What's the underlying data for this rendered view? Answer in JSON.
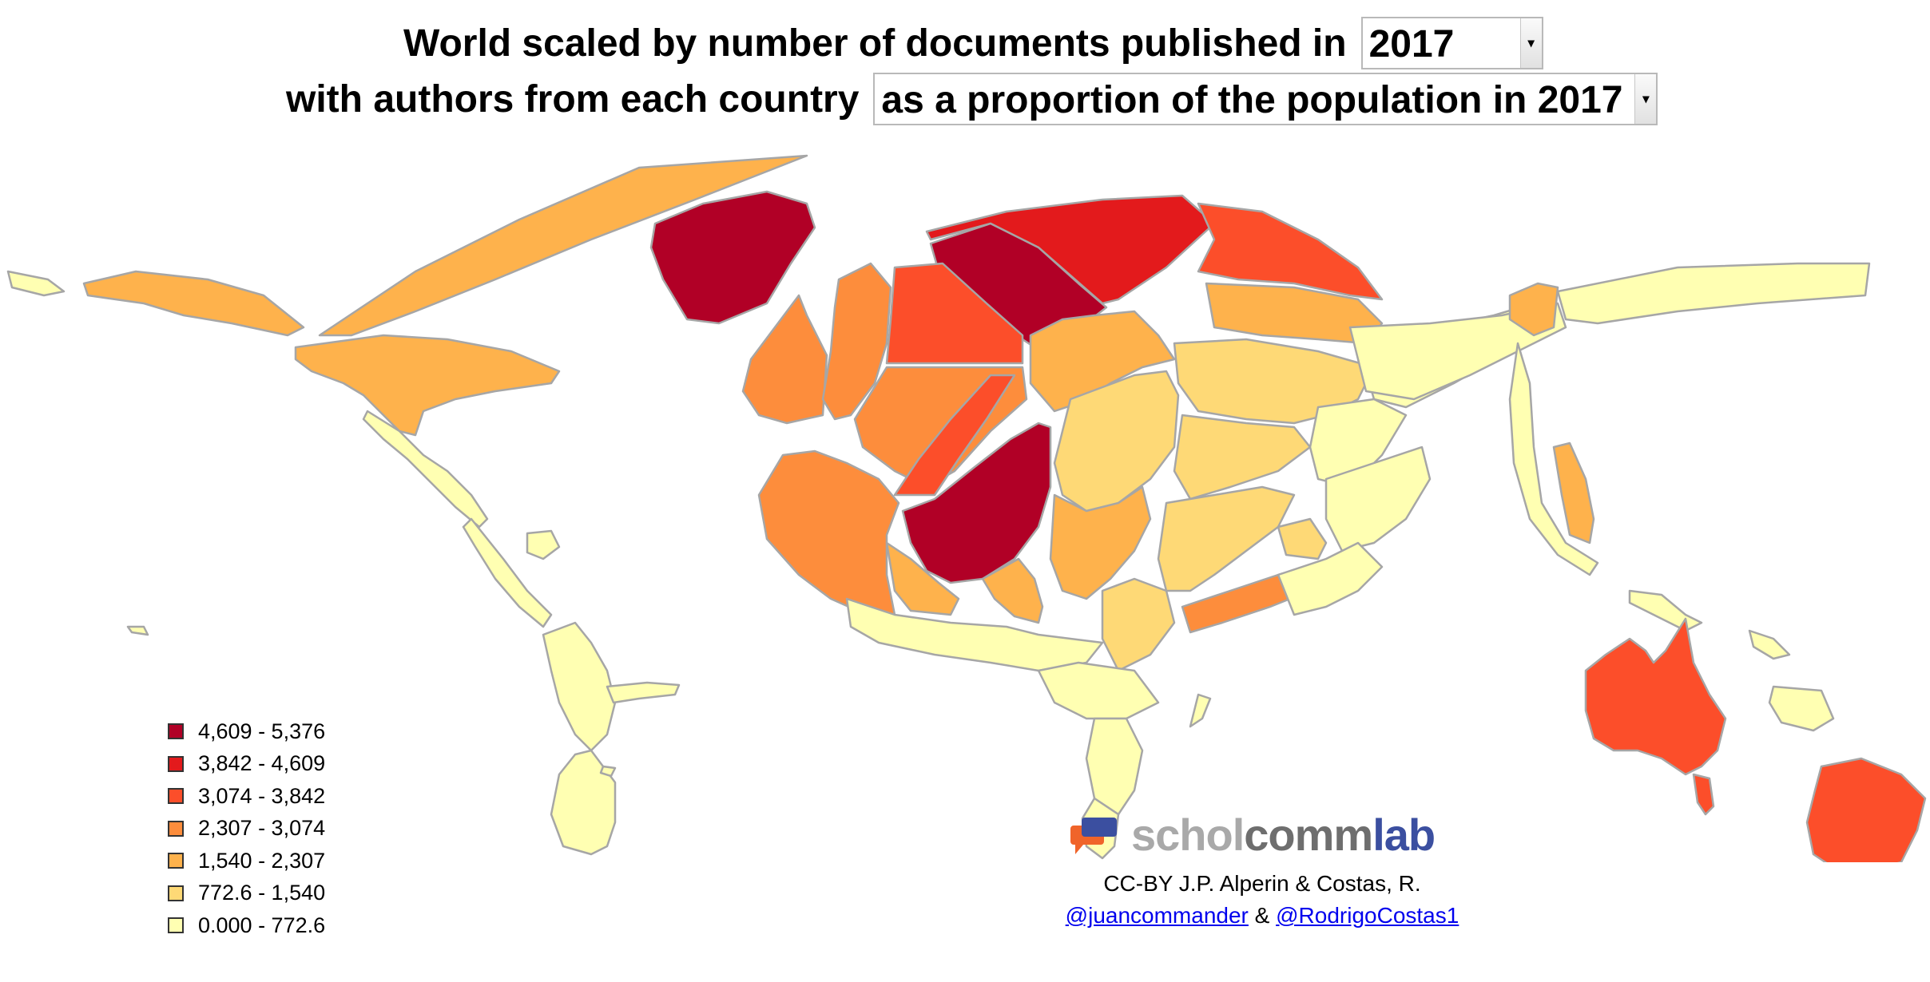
{
  "title": {
    "line1_prefix": "World scaled by number of documents published in",
    "year_select": {
      "value": "2017"
    },
    "line2_prefix": "with authors from each country",
    "measure_select": {
      "value": "as a proportion of the population in 2017"
    }
  },
  "select_arrow_icon": "chevron-down-icon",
  "legend": [
    {
      "label": "4,609 - 5,376",
      "color": "#b10026"
    },
    {
      "label": "3,842 - 4,609",
      "color": "#e31a1c"
    },
    {
      "label": "3,074 - 3,842",
      "color": "#fc4e2a"
    },
    {
      "label": "2,307 - 3,074",
      "color": "#fd8d3c"
    },
    {
      "label": "1,540 - 2,307",
      "color": "#feb24c"
    },
    {
      "label": "772.6 - 1,540",
      "color": "#fed976"
    },
    {
      "label": "0.000 - 772.6",
      "color": "#ffffb2"
    }
  ],
  "logo": {
    "part1": "schol",
    "part2": "comm",
    "part3": "lab"
  },
  "credits": {
    "line1": "CC-BY J.P. Alperin & Costas, R.",
    "link1": "@juancommander",
    "separator": "&",
    "link2": "@RodrigoCostas1"
  }
}
